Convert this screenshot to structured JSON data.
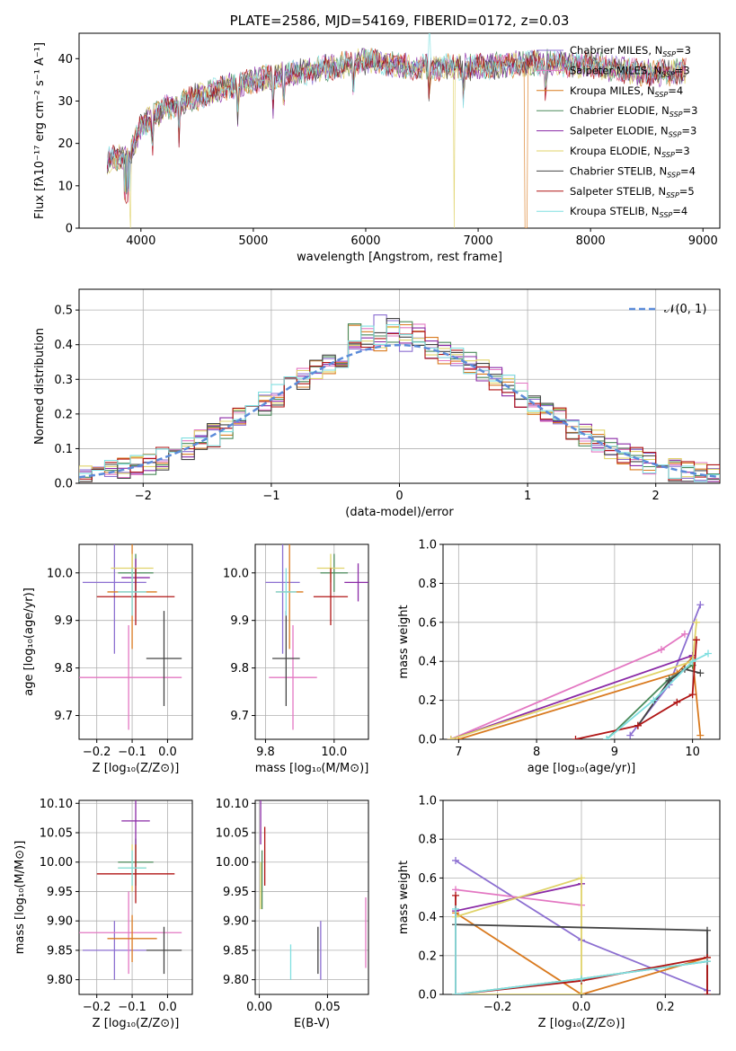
{
  "colors": [
    "#8c6fd1",
    "#e377c2",
    "#d97a1f",
    "#4a8a5a",
    "#8a2aa6",
    "#e0d36a",
    "#444444",
    "#b01515",
    "#7fdfe0"
  ],
  "chart_data": [
    {
      "id": "spectrum",
      "type": "line",
      "title": "PLATE=2586, MJD=54169, FIBERID=0172, z=0.03",
      "xlabel": "wavelength [Angstrom, rest frame]",
      "ylabel": "Flux [fλ10⁻¹⁷ erg cm⁻² s⁻¹ A⁻¹]",
      "xlim": [
        3450,
        9150
      ],
      "ylim": [
        0,
        46
      ],
      "xticks": [
        4000,
        5000,
        6000,
        7000,
        8000,
        9000
      ],
      "yticks": [
        0,
        10,
        20,
        30,
        40
      ],
      "legend_position": "top-right",
      "series": [
        {
          "name": "Chabrier MILES, N",
          "sub": "SSP",
          "suffix": "=3"
        },
        {
          "name": "Salpeter MILES, N",
          "sub": "SSP",
          "suffix": "=3"
        },
        {
          "name": "Kroupa MILES, N",
          "sub": "SSP",
          "suffix": "=4"
        },
        {
          "name": "Chabrier ELODIE, N",
          "sub": "SSP",
          "suffix": "=3"
        },
        {
          "name": "Salpeter ELODIE, N",
          "sub": "SSP",
          "suffix": "=3"
        },
        {
          "name": "Kroupa ELODIE, N",
          "sub": "SSP",
          "suffix": "=3"
        },
        {
          "name": "Chabrier STELIB, N",
          "sub": "SSP",
          "suffix": "=4"
        },
        {
          "name": "Salpeter STELIB, N",
          "sub": "SSP",
          "suffix": "=5"
        },
        {
          "name": "Kroupa STELIB, N",
          "sub": "SSP",
          "suffix": "=4"
        }
      ],
      "continuum": {
        "x": [
          3700,
          3900,
          4000,
          4200,
          4500,
          5000,
          5500,
          6000,
          6500,
          7000,
          7500,
          8000,
          8500,
          8850
        ],
        "y": [
          16,
          17,
          24,
          28,
          31,
          35,
          37,
          39.5,
          38,
          38,
          39,
          38.5,
          36.5,
          37
        ]
      }
    },
    {
      "id": "residuals",
      "type": "histogram",
      "xlabel": "(data-model)/error",
      "ylabel": "Normed distribution",
      "xlim": [
        -2.5,
        2.5
      ],
      "ylim": [
        0,
        0.56
      ],
      "xticks": [
        -2,
        -1,
        0,
        1,
        2
      ],
      "yticks": [
        0.0,
        0.1,
        0.2,
        0.3,
        0.4,
        0.5
      ],
      "reference_curve": {
        "label": "𝒩(0, 1)",
        "mean": 0,
        "sigma": 1,
        "color": "#5b8bd9"
      },
      "legend_position": "top-right",
      "bin_width": 0.1
    },
    {
      "id": "age_vs_Z",
      "type": "errorbar",
      "xlabel": "Z [log₁₀(Z/Z⊙)]",
      "ylabel": "age  [log₁₀(age/yr)]",
      "xlim": [
        -0.25,
        0.07
      ],
      "ylim": [
        9.65,
        10.06
      ],
      "xticks": [
        -0.2,
        -0.1,
        0.0
      ],
      "yticks": [
        9.7,
        9.8,
        9.9,
        10.0
      ],
      "points": [
        {
          "x": -0.15,
          "xerr": 0.09,
          "y": 9.98,
          "yerr": 0.15,
          "c": 0
        },
        {
          "x": -0.11,
          "xerr": 0.15,
          "y": 9.78,
          "yerr": 0.11,
          "c": 1
        },
        {
          "x": -0.1,
          "xerr": 0.07,
          "y": 9.96,
          "yerr": 0.12,
          "c": 2
        },
        {
          "x": -0.09,
          "xerr": 0.05,
          "y": 10.0,
          "yerr": 0.04,
          "c": 3
        },
        {
          "x": -0.09,
          "xerr": 0.04,
          "y": 9.99,
          "yerr": 0.04,
          "c": 4
        },
        {
          "x": -0.1,
          "xerr": 0.06,
          "y": 10.01,
          "yerr": 0.03,
          "c": 5
        },
        {
          "x": -0.01,
          "xerr": 0.05,
          "y": 9.82,
          "yerr": 0.1,
          "c": 6
        },
        {
          "x": -0.09,
          "xerr": 0.11,
          "y": 9.95,
          "yerr": 0.06,
          "c": 7
        },
        {
          "x": -0.1,
          "xerr": 0.04,
          "y": 9.96,
          "yerr": 0.05,
          "c": 8
        }
      ]
    },
    {
      "id": "age_vs_mass",
      "type": "errorbar",
      "xlabel": "mass [log₁₀(M/M⊙)]",
      "xlim": [
        9.77,
        10.1
      ],
      "ylim": [
        9.65,
        10.06
      ],
      "xticks": [
        9.8,
        10.0
      ],
      "yticks": [
        9.7,
        9.8,
        9.9,
        10.0
      ],
      "points": [
        {
          "x": 9.85,
          "xerr": 0.05,
          "y": 9.98,
          "yerr": 0.15,
          "c": 0
        },
        {
          "x": 9.88,
          "xerr": 0.07,
          "y": 9.78,
          "yerr": 0.11,
          "c": 1
        },
        {
          "x": 9.87,
          "xerr": 0.04,
          "y": 9.96,
          "yerr": 0.12,
          "c": 2
        },
        {
          "x": 10.0,
          "xerr": 0.04,
          "y": 10.0,
          "yerr": 0.04,
          "c": 3
        },
        {
          "x": 10.07,
          "xerr": 0.04,
          "y": 9.98,
          "yerr": 0.04,
          "c": 4
        },
        {
          "x": 9.99,
          "xerr": 0.04,
          "y": 10.01,
          "yerr": 0.03,
          "c": 5
        },
        {
          "x": 9.86,
          "xerr": 0.04,
          "y": 9.82,
          "yerr": 0.1,
          "c": 6
        },
        {
          "x": 9.99,
          "xerr": 0.05,
          "y": 9.95,
          "yerr": 0.06,
          "c": 7
        },
        {
          "x": 9.86,
          "xerr": 0.03,
          "y": 9.96,
          "yerr": 0.05,
          "c": 8
        }
      ]
    },
    {
      "id": "weight_vs_age",
      "type": "line",
      "xlabel": "age  [log₁₀(age/yr)]",
      "ylabel": "mass weight",
      "xlim": [
        6.8,
        10.35
      ],
      "ylim": [
        0,
        1.0
      ],
      "xticks": [
        7,
        8,
        9,
        10
      ],
      "yticks": [
        0.0,
        0.2,
        0.4,
        0.6,
        0.8,
        1.0
      ],
      "series": [
        {
          "c": 0,
          "x": [
            9.2,
            9.7,
            10.1
          ],
          "y": [
            0.02,
            0.28,
            0.69
          ]
        },
        {
          "c": 1,
          "x": [
            6.9,
            9.6,
            9.9
          ],
          "y": [
            0.0,
            0.46,
            0.54
          ]
        },
        {
          "c": 2,
          "x": [
            7.0,
            9.8,
            10.0,
            10.1
          ],
          "y": [
            0.0,
            0.34,
            0.42,
            0.02
          ]
        },
        {
          "c": 3,
          "x": [
            8.9,
            9.7,
            10.0
          ],
          "y": [
            0.0,
            0.31,
            0.38
          ]
        },
        {
          "c": 4,
          "x": [
            6.9,
            10.0
          ],
          "y": [
            0.0,
            0.43
          ]
        },
        {
          "c": 5,
          "x": [
            6.9,
            10.0,
            10.05
          ],
          "y": [
            0.0,
            0.4,
            0.6
          ]
        },
        {
          "c": 6,
          "x": [
            9.3,
            9.7,
            9.9,
            10.1
          ],
          "y": [
            0.07,
            0.3,
            0.36,
            0.34
          ]
        },
        {
          "c": 7,
          "x": [
            8.5,
            9.3,
            9.8,
            10.0,
            10.05
          ],
          "y": [
            0.0,
            0.07,
            0.19,
            0.23,
            0.51
          ]
        },
        {
          "c": 8,
          "x": [
            8.9,
            9.5,
            10.0,
            10.2
          ],
          "y": [
            0.0,
            0.2,
            0.4,
            0.44
          ]
        }
      ]
    },
    {
      "id": "mass_vs_Z",
      "type": "errorbar",
      "xlabel": "Z [log₁₀(Z/Z⊙)]",
      "ylabel": "mass [log₁₀(M/M⊙)]",
      "xlim": [
        -0.25,
        0.07
      ],
      "ylim": [
        9.775,
        10.105
      ],
      "xticks": [
        -0.2,
        -0.1,
        0.0
      ],
      "yticks": [
        9.8,
        9.85,
        9.9,
        9.95,
        10.0,
        10.05,
        10.1
      ],
      "points": [
        {
          "x": -0.15,
          "xerr": 0.09,
          "y": 9.85,
          "yerr": 0.05,
          "c": 0
        },
        {
          "x": -0.11,
          "xerr": 0.15,
          "y": 9.88,
          "yerr": 0.07,
          "c": 1
        },
        {
          "x": -0.1,
          "xerr": 0.07,
          "y": 9.87,
          "yerr": 0.04,
          "c": 2
        },
        {
          "x": -0.09,
          "xerr": 0.05,
          "y": 10.0,
          "yerr": 0.04,
          "c": 3
        },
        {
          "x": -0.09,
          "xerr": 0.04,
          "y": 10.07,
          "yerr": 0.04,
          "c": 4
        },
        {
          "x": -0.1,
          "xerr": 0.04,
          "y": 9.99,
          "yerr": 0.04,
          "c": 5
        },
        {
          "x": -0.01,
          "xerr": 0.05,
          "y": 9.85,
          "yerr": 0.04,
          "c": 6
        },
        {
          "x": -0.09,
          "xerr": 0.11,
          "y": 9.98,
          "yerr": 0.05,
          "c": 7
        },
        {
          "x": -0.1,
          "xerr": 0.04,
          "y": 9.99,
          "yerr": 0.03,
          "c": 8
        }
      ]
    },
    {
      "id": "mass_vs_ebv",
      "type": "errorbar",
      "xlabel": "E(B-V)",
      "xlim": [
        -0.003,
        0.08
      ],
      "ylim": [
        9.775,
        10.105
      ],
      "xticks": [
        0.0,
        0.05
      ],
      "yticks": [
        9.8,
        9.85,
        9.9,
        9.95,
        10.0,
        10.05,
        10.1
      ],
      "points": [
        {
          "x": 0.045,
          "xerr": 0,
          "y": 9.85,
          "yerr": 0.05,
          "c": 0
        },
        {
          "x": 0.078,
          "xerr": 0,
          "y": 9.88,
          "yerr": 0.06,
          "c": 1
        },
        {
          "x": 0.002,
          "xerr": 0,
          "y": 9.97,
          "yerr": 0.05,
          "c": 3
        },
        {
          "x": 0.001,
          "xerr": 0,
          "y": 10.07,
          "yerr": 0.04,
          "c": 4
        },
        {
          "x": 0.001,
          "xerr": 0,
          "y": 9.96,
          "yerr": 0.04,
          "c": 5
        },
        {
          "x": 0.043,
          "xerr": 0,
          "y": 9.85,
          "yerr": 0.04,
          "c": 6
        },
        {
          "x": 0.004,
          "xerr": 0,
          "y": 10.01,
          "yerr": 0.05,
          "c": 7
        },
        {
          "x": 0.023,
          "xerr": 0,
          "y": 9.83,
          "yerr": 0.03,
          "c": 8
        }
      ]
    },
    {
      "id": "weight_vs_Z",
      "type": "line",
      "xlabel": "Z [log₁₀(Z/Z⊙)]",
      "ylabel": "mass weight",
      "xlim": [
        -0.33,
        0.33
      ],
      "ylim": [
        0,
        1.0
      ],
      "xticks": [
        -0.2,
        0.0,
        0.2
      ],
      "yticks": [
        0.0,
        0.2,
        0.4,
        0.6,
        0.8,
        1.0
      ],
      "series": [
        {
          "c": 0,
          "x": [
            -0.3,
            0.0,
            0.3
          ],
          "y": [
            0.69,
            0.28,
            0.02
          ]
        },
        {
          "c": 1,
          "x": [
            -0.3,
            0.0
          ],
          "y": [
            0.54,
            0.46
          ]
        },
        {
          "c": 2,
          "x": [
            -0.3,
            0.0,
            0.3
          ],
          "y": [
            0.42,
            0.0,
            0.19
          ]
        },
        {
          "c": 3,
          "x": [
            -0.3,
            0.0,
            0.3
          ],
          "y": [
            0.0,
            0.08,
            0.17
          ]
        },
        {
          "c": 4,
          "x": [
            -0.3,
            0.0,
            0.0
          ],
          "y": [
            0.43,
            0.57,
            0.57
          ]
        },
        {
          "c": 5,
          "x": [
            -0.3,
            0.0,
            0.0,
            -0.3
          ],
          "y": [
            0.4,
            0.6,
            0.0,
            0.0
          ]
        },
        {
          "c": 6,
          "x": [
            -0.3,
            0.3,
            0.3
          ],
          "y": [
            0.36,
            0.33,
            0.0
          ]
        },
        {
          "c": 7,
          "x": [
            -0.3,
            -0.3,
            0.0,
            0.3,
            0.3
          ],
          "y": [
            0.51,
            0.0,
            0.07,
            0.19,
            0.0
          ]
        },
        {
          "c": 8,
          "x": [
            -0.3,
            -0.3,
            0.0,
            0.3
          ],
          "y": [
            0.44,
            0.0,
            0.08,
            0.17
          ]
        }
      ]
    }
  ]
}
